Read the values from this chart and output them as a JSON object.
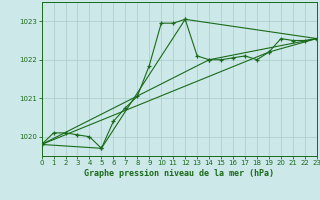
{
  "title": "Graphe pression niveau de la mer (hPa)",
  "bg_color": "#cce8e8",
  "grid_color": "#aacccc",
  "line_color": "#1a6b1a",
  "marker_color": "#1a6b1a",
  "xlim": [
    0,
    23
  ],
  "ylim": [
    1019.5,
    1023.5
  ],
  "yticks": [
    1020,
    1021,
    1022,
    1023
  ],
  "xticks": [
    0,
    1,
    2,
    3,
    4,
    5,
    6,
    7,
    8,
    9,
    10,
    11,
    12,
    13,
    14,
    15,
    16,
    17,
    18,
    19,
    20,
    21,
    22,
    23
  ],
  "series": [
    [
      0,
      1019.8
    ],
    [
      1,
      1020.1
    ],
    [
      2,
      1020.1
    ],
    [
      3,
      1020.05
    ],
    [
      4,
      1020.0
    ],
    [
      5,
      1019.7
    ],
    [
      6,
      1020.4
    ],
    [
      7,
      1020.75
    ],
    [
      8,
      1021.05
    ],
    [
      9,
      1021.85
    ],
    [
      10,
      1022.95
    ],
    [
      11,
      1022.95
    ],
    [
      12,
      1023.05
    ],
    [
      13,
      1022.1
    ],
    [
      14,
      1022.0
    ],
    [
      15,
      1022.0
    ],
    [
      16,
      1022.05
    ],
    [
      17,
      1022.1
    ],
    [
      18,
      1022.0
    ],
    [
      19,
      1022.2
    ],
    [
      20,
      1022.55
    ],
    [
      21,
      1022.5
    ],
    [
      22,
      1022.5
    ],
    [
      23,
      1022.55
    ]
  ],
  "series2": [
    [
      0,
      1019.8
    ],
    [
      14,
      1022.0
    ],
    [
      23,
      1022.55
    ]
  ],
  "series3": [
    [
      0,
      1019.8
    ],
    [
      5,
      1019.7
    ],
    [
      12,
      1023.05
    ],
    [
      23,
      1022.55
    ]
  ],
  "series4": [
    [
      0,
      1019.8
    ],
    [
      19,
      1022.2
    ],
    [
      23,
      1022.55
    ]
  ]
}
